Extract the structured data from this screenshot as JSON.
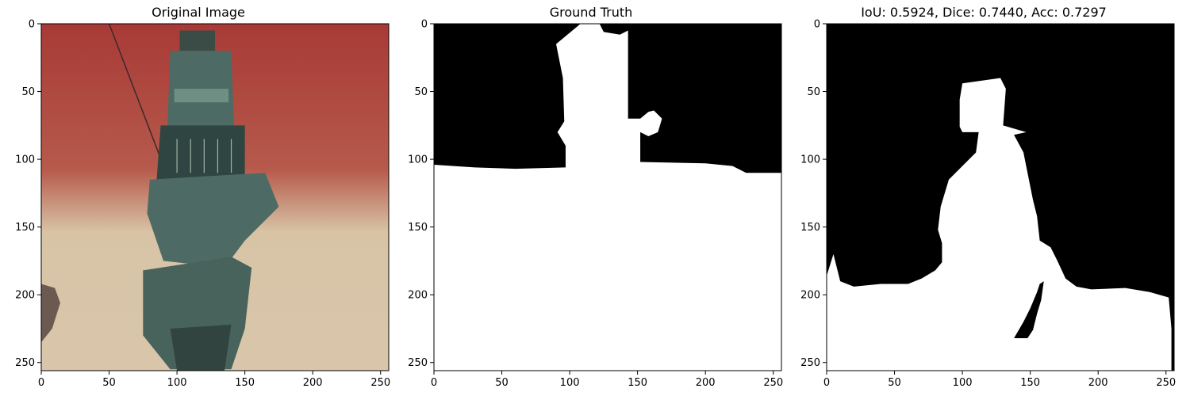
{
  "figure": {
    "panels": [
      {
        "title": "Original Image"
      },
      {
        "title": "Ground Truth"
      },
      {
        "title": "IoU: 0.5924, Dice: 0.7440, Acc: 0.7297"
      }
    ]
  },
  "chart_data": [
    {
      "type": "image",
      "title": "Original Image",
      "xlim": [
        0,
        256
      ],
      "ylim": [
        256,
        0
      ],
      "x_ticks": [
        0,
        50,
        100,
        150,
        200,
        250
      ],
      "y_ticks": [
        0,
        50,
        100,
        150,
        200,
        250
      ],
      "colors": {
        "sky": "#a83a36",
        "sand": "#d8c3a5",
        "hull": "#4d6b64",
        "hull_dark": "#2f4541"
      }
    },
    {
      "type": "image",
      "title": "Ground Truth",
      "xlim": [
        0,
        256
      ],
      "ylim": [
        256,
        0
      ],
      "x_ticks": [
        0,
        50,
        100,
        150,
        200,
        250
      ],
      "y_ticks": [
        0,
        50,
        100,
        150,
        200,
        250
      ],
      "colors": {
        "background": "#000000",
        "foreground": "#ffffff"
      },
      "mask_polygon": [
        [
          0,
          104
        ],
        [
          30,
          106
        ],
        [
          60,
          107
        ],
        [
          97,
          106
        ],
        [
          97,
          90
        ],
        [
          91,
          80
        ],
        [
          96,
          72
        ],
        [
          95,
          40
        ],
        [
          90,
          15
        ],
        [
          108,
          0
        ],
        [
          122,
          0
        ],
        [
          125,
          6
        ],
        [
          137,
          8
        ],
        [
          143,
          5
        ],
        [
          143,
          50
        ],
        [
          143,
          70
        ],
        [
          152,
          70
        ],
        [
          158,
          65
        ],
        [
          162,
          64
        ],
        [
          168,
          70
        ],
        [
          165,
          80
        ],
        [
          158,
          83
        ],
        [
          152,
          80
        ],
        [
          152,
          102
        ],
        [
          200,
          103
        ],
        [
          220,
          105
        ],
        [
          230,
          110
        ],
        [
          256,
          110
        ],
        [
          256,
          256
        ],
        [
          0,
          256
        ]
      ]
    },
    {
      "type": "image",
      "title": "IoU: 0.5924, Dice: 0.7440, Acc: 0.7297",
      "metrics": {
        "IoU": 0.5924,
        "Dice": 0.744,
        "Acc": 0.7297
      },
      "xlim": [
        0,
        256
      ],
      "ylim": [
        256,
        0
      ],
      "x_ticks": [
        0,
        50,
        100,
        150,
        200,
        250
      ],
      "y_ticks": [
        0,
        50,
        100,
        150,
        200,
        250
      ],
      "colors": {
        "background": "#000000",
        "foreground": "#ffffff"
      },
      "mask_polygon": [
        [
          0,
          256
        ],
        [
          0,
          186
        ],
        [
          5,
          170
        ],
        [
          10,
          190
        ],
        [
          20,
          194
        ],
        [
          40,
          192
        ],
        [
          60,
          192
        ],
        [
          70,
          188
        ],
        [
          80,
          182
        ],
        [
          85,
          176
        ],
        [
          85,
          162
        ],
        [
          82,
          152
        ],
        [
          84,
          135
        ],
        [
          90,
          115
        ],
        [
          100,
          105
        ],
        [
          110,
          95
        ],
        [
          112,
          80
        ],
        [
          100,
          80
        ],
        [
          98,
          76
        ],
        [
          98,
          56
        ],
        [
          100,
          44
        ],
        [
          128,
          40
        ],
        [
          132,
          48
        ],
        [
          130,
          75
        ],
        [
          147,
          80
        ],
        [
          138,
          82
        ],
        [
          145,
          95
        ],
        [
          148,
          110
        ],
        [
          152,
          130
        ],
        [
          155,
          142
        ],
        [
          157,
          160
        ],
        [
          165,
          165
        ],
        [
          170,
          175
        ],
        [
          176,
          188
        ],
        [
          184,
          194
        ],
        [
          195,
          196
        ],
        [
          220,
          195
        ],
        [
          238,
          198
        ],
        [
          252,
          202
        ],
        [
          254,
          225
        ],
        [
          254,
          232
        ],
        [
          254,
          256
        ]
      ],
      "hole_polygon": [
        [
          140,
          232
        ],
        [
          138,
          232
        ],
        [
          145,
          220
        ],
        [
          150,
          210
        ],
        [
          155,
          198
        ],
        [
          157,
          192
        ],
        [
          160,
          190
        ],
        [
          158,
          204
        ],
        [
          155,
          214
        ],
        [
          152,
          226
        ],
        [
          148,
          232
        ]
      ]
    }
  ]
}
